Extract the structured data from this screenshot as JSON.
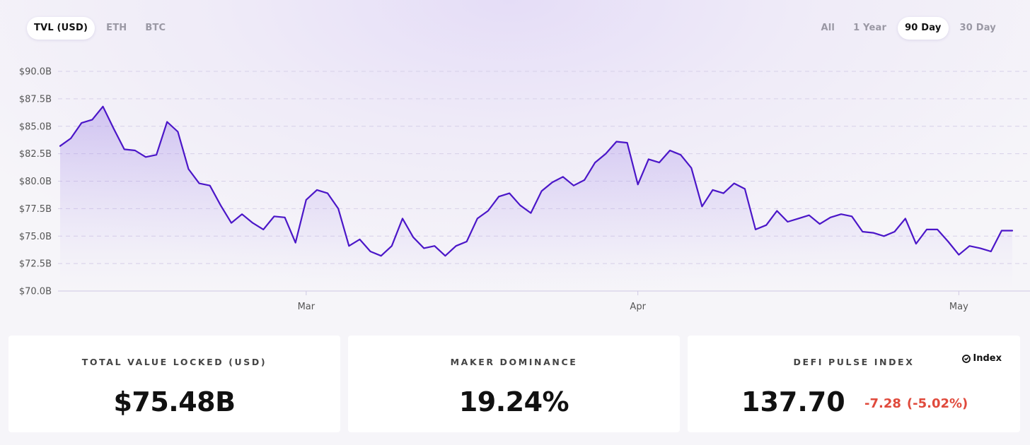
{
  "tabs_left": [
    {
      "label": "TVL (USD)",
      "active": true
    },
    {
      "label": "ETH",
      "active": false
    },
    {
      "label": "BTC",
      "active": false
    }
  ],
  "tabs_right": [
    {
      "label": "All",
      "active": false
    },
    {
      "label": "1 Year",
      "active": false
    },
    {
      "label": "90 Day",
      "active": true
    },
    {
      "label": "30 Day",
      "active": false
    }
  ],
  "colors": {
    "line": "#4b16c8",
    "fill": "#9f84e6",
    "negative": "#e04a3c"
  },
  "chart_data": {
    "type": "area",
    "title": "",
    "xlabel": "",
    "ylabel": "",
    "ylim": [
      70.0,
      90.0
    ],
    "y_ticks": [
      "$90.0B",
      "$87.5B",
      "$85.0B",
      "$82.5B",
      "$80.0B",
      "$77.5B",
      "$75.0B",
      "$72.5B",
      "$70.0B"
    ],
    "y_tick_values": [
      90.0,
      87.5,
      85.0,
      82.5,
      80.0,
      77.5,
      75.0,
      72.5,
      70.0
    ],
    "x_ticks": [
      {
        "label": "Mar",
        "index": 23
      },
      {
        "label": "Apr",
        "index": 54
      },
      {
        "label": "May",
        "index": 84
      }
    ],
    "grid": true,
    "grid_style": "dashed",
    "series": [
      {
        "values": [
          83.2,
          83.9,
          85.3,
          85.6,
          86.8,
          84.8,
          82.9,
          82.8,
          82.2,
          82.4,
          85.4,
          84.5,
          81.1,
          79.8,
          79.6,
          77.8,
          76.2,
          77.0,
          76.2,
          75.6,
          76.8,
          76.7,
          74.4,
          78.3,
          79.2,
          78.9,
          77.5,
          74.1,
          74.7,
          73.6,
          73.2,
          74.1,
          76.6,
          74.9,
          73.9,
          74.1,
          73.2,
          74.1,
          74.5,
          76.6,
          77.3,
          78.6,
          78.9,
          77.8,
          77.1,
          79.1,
          79.9,
          80.4,
          79.6,
          80.1,
          81.7,
          82.5,
          83.6,
          83.5,
          79.7,
          82.0,
          81.7,
          82.8,
          82.4,
          81.2,
          77.7,
          79.2,
          78.9,
          79.8,
          79.3,
          75.6,
          76.0,
          77.3,
          76.3,
          76.6,
          76.9,
          76.1,
          76.7,
          77.0,
          76.8,
          75.4,
          75.3,
          75.0,
          75.4,
          76.6,
          74.3,
          75.6,
          75.6,
          74.5,
          73.3,
          74.1,
          73.9,
          73.6,
          75.5,
          75.5
        ]
      }
    ]
  },
  "cards": {
    "tvl": {
      "title": "TOTAL VALUE LOCKED (USD)",
      "value": "$75.48B"
    },
    "dominance": {
      "title": "MAKER DOMINANCE",
      "value": "19.24%"
    },
    "index": {
      "title": "DEFI PULSE INDEX",
      "value": "137.70",
      "change": "-7.28",
      "change_pct": "(-5.02%)",
      "brand": "Index",
      "brand_icon": "index-logo-icon"
    }
  }
}
